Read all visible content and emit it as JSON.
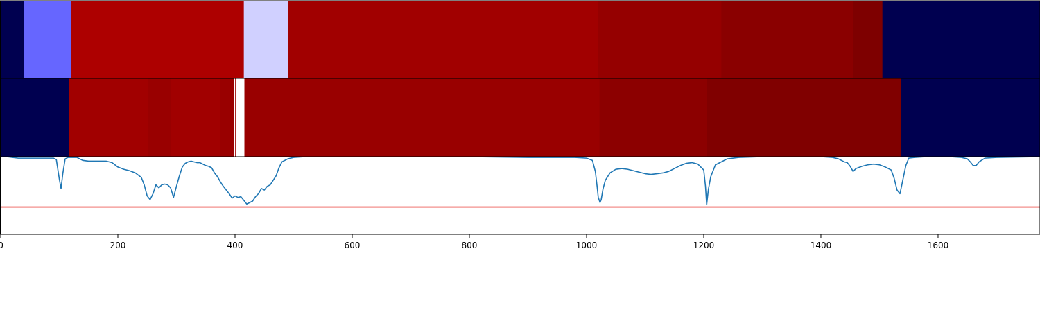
{
  "chart_data": [
    {
      "type": "heatmap",
      "xlim": [
        0,
        1774
      ],
      "segments": [
        {
          "start": 0,
          "end": 40,
          "color": "#000050"
        },
        {
          "start": 40,
          "end": 120,
          "color": "#6666ff"
        },
        {
          "start": 120,
          "end": 415,
          "color": "#ad0000"
        },
        {
          "start": 415,
          "end": 490,
          "color": "#d0d0ff"
        },
        {
          "start": 490,
          "end": 1020,
          "color": "#a10000"
        },
        {
          "start": 1020,
          "end": 1230,
          "color": "#950000"
        },
        {
          "start": 1230,
          "end": 1455,
          "color": "#8a0000"
        },
        {
          "start": 1455,
          "end": 1505,
          "color": "#7e0000"
        },
        {
          "start": 1505,
          "end": 1774,
          "color": "#000050"
        }
      ]
    },
    {
      "type": "heatmap",
      "xlim": [
        0,
        1774
      ],
      "segments": [
        {
          "start": 0,
          "end": 117,
          "color": "#000050"
        },
        {
          "start": 117,
          "end": 252,
          "color": "#a10000"
        },
        {
          "start": 252,
          "end": 290,
          "color": "#990000"
        },
        {
          "start": 290,
          "end": 375,
          "color": "#a10000"
        },
        {
          "start": 375,
          "end": 398,
          "color": "#990000"
        },
        {
          "start": 398,
          "end": 400,
          "color": "#ffffff"
        },
        {
          "start": 400,
          "end": 401,
          "color": "#990000"
        },
        {
          "start": 401,
          "end": 416,
          "color": "#ffffff"
        },
        {
          "start": 416,
          "end": 1022,
          "color": "#990000"
        },
        {
          "start": 1022,
          "end": 1205,
          "color": "#8c0000"
        },
        {
          "start": 1205,
          "end": 1537,
          "color": "#800000"
        },
        {
          "start": 1537,
          "end": 1774,
          "color": "#000050"
        }
      ]
    },
    {
      "type": "line",
      "xlim": [
        0,
        1774
      ],
      "ylim": [
        -0.05,
        1.0
      ],
      "xticks": [
        0,
        200,
        400,
        600,
        800,
        1000,
        1200,
        1400,
        1600
      ],
      "xtick_labels": [
        "0",
        "200",
        "400",
        "600",
        "800",
        "1000",
        "1200",
        "1400",
        "1600"
      ],
      "threshold": 0.32,
      "threshold_color": "#e8201a",
      "line_color": "#1f77b4",
      "series": [
        {
          "x": [
            0,
            10,
            20,
            30,
            40,
            50,
            60,
            70,
            80,
            90,
            95,
            100,
            103,
            106,
            110,
            115,
            120,
            125,
            130,
            140,
            150,
            160,
            170,
            180,
            190,
            200,
            210,
            220,
            230,
            240,
            245,
            250,
            255,
            260,
            265,
            270,
            275,
            280,
            285,
            290,
            295,
            300,
            305,
            310,
            315,
            320,
            325,
            330,
            335,
            340,
            345,
            350,
            355,
            360,
            365,
            370,
            375,
            380,
            385,
            390,
            395,
            400,
            405,
            410,
            415,
            420,
            425,
            430,
            435,
            440,
            445,
            450,
            455,
            460,
            465,
            470,
            475,
            480,
            490,
            500,
            520,
            600,
            700,
            800,
            900,
            980,
            1000,
            1010,
            1015,
            1018,
            1020,
            1023,
            1025,
            1028,
            1032,
            1040,
            1050,
            1060,
            1070,
            1080,
            1090,
            1100,
            1110,
            1120,
            1130,
            1140,
            1150,
            1160,
            1170,
            1180,
            1190,
            1200,
            1203,
            1205,
            1208,
            1212,
            1220,
            1240,
            1260,
            1300,
            1400,
            1420,
            1430,
            1440,
            1445,
            1450,
            1455,
            1460,
            1470,
            1480,
            1490,
            1500,
            1510,
            1520,
            1525,
            1530,
            1535,
            1540,
            1545,
            1550,
            1560,
            1580,
            1620,
            1640,
            1650,
            1655,
            1660,
            1665,
            1670,
            1680,
            1700,
            1774
          ],
          "y": [
            1.0,
            1.0,
            0.99,
            0.98,
            0.98,
            0.98,
            0.98,
            0.98,
            0.98,
            0.98,
            0.96,
            0.7,
            0.57,
            0.77,
            0.97,
            0.99,
            0.99,
            0.99,
            0.99,
            0.95,
            0.94,
            0.94,
            0.94,
            0.94,
            0.92,
            0.86,
            0.83,
            0.81,
            0.78,
            0.72,
            0.62,
            0.47,
            0.42,
            0.5,
            0.62,
            0.58,
            0.62,
            0.63,
            0.62,
            0.58,
            0.45,
            0.6,
            0.74,
            0.86,
            0.91,
            0.93,
            0.94,
            0.93,
            0.92,
            0.92,
            0.9,
            0.88,
            0.87,
            0.85,
            0.78,
            0.73,
            0.66,
            0.6,
            0.55,
            0.5,
            0.44,
            0.47,
            0.45,
            0.46,
            0.41,
            0.36,
            0.38,
            0.4,
            0.46,
            0.5,
            0.57,
            0.55,
            0.6,
            0.62,
            0.68,
            0.74,
            0.85,
            0.93,
            0.97,
            0.99,
            1.0,
            1.0,
            1.0,
            1.0,
            0.99,
            0.99,
            0.98,
            0.95,
            0.8,
            0.6,
            0.45,
            0.38,
            0.42,
            0.56,
            0.68,
            0.78,
            0.83,
            0.84,
            0.83,
            0.81,
            0.79,
            0.77,
            0.76,
            0.77,
            0.78,
            0.8,
            0.84,
            0.88,
            0.91,
            0.92,
            0.9,
            0.82,
            0.6,
            0.35,
            0.56,
            0.73,
            0.89,
            0.97,
            0.99,
            1.0,
            1.0,
            0.99,
            0.97,
            0.93,
            0.92,
            0.87,
            0.8,
            0.84,
            0.87,
            0.89,
            0.9,
            0.89,
            0.86,
            0.82,
            0.71,
            0.55,
            0.5,
            0.69,
            0.88,
            0.98,
            0.99,
            1.0,
            1.0,
            0.99,
            0.97,
            0.93,
            0.88,
            0.88,
            0.93,
            0.98,
            0.99,
            1.0
          ]
        }
      ]
    }
  ]
}
